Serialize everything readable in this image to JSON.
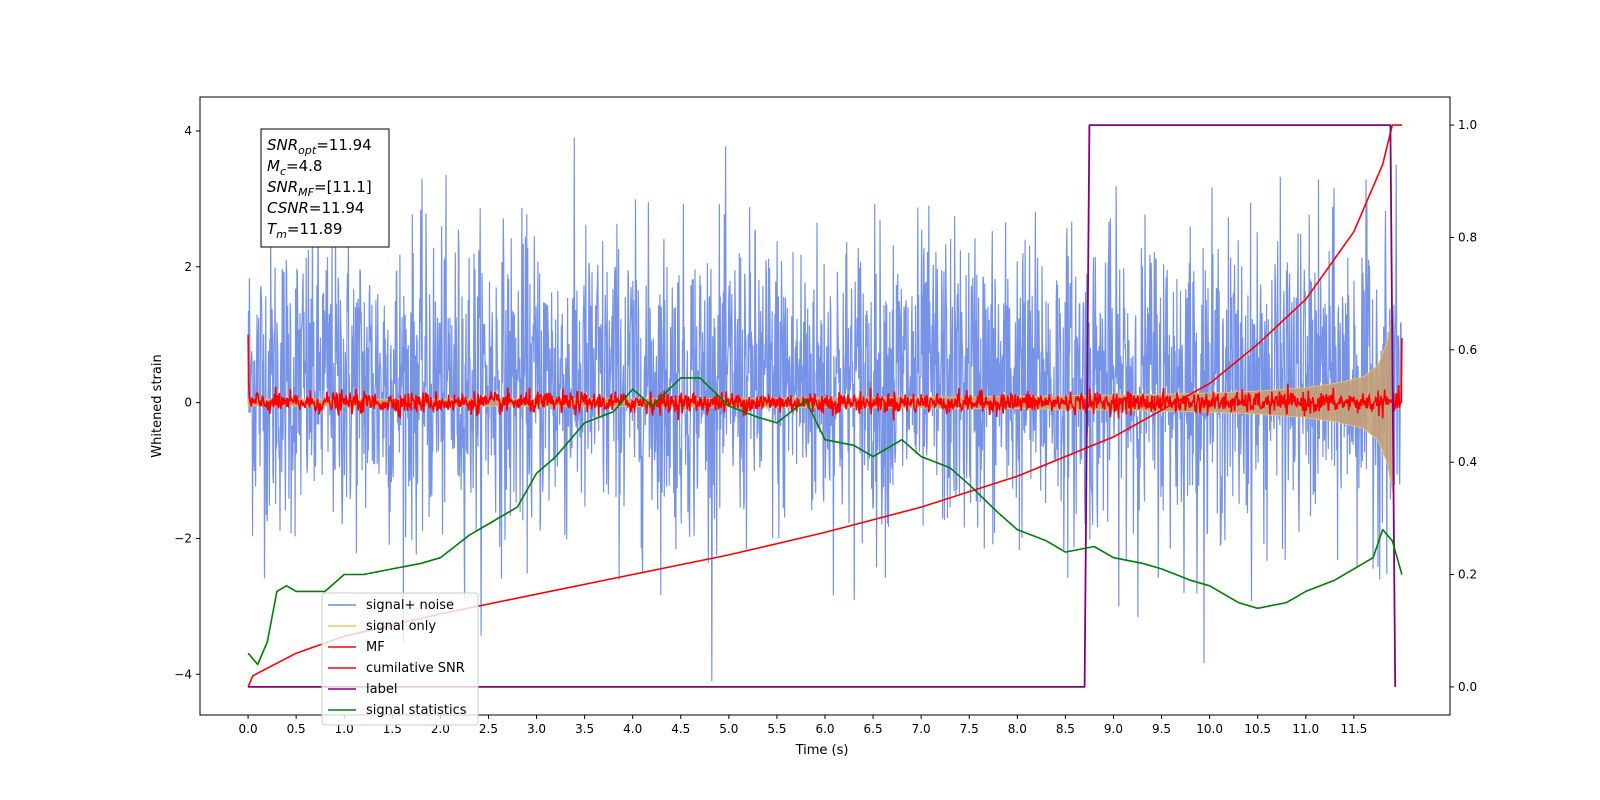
{
  "chart_data": {
    "type": "line",
    "xlabel": "Time (s)",
    "ylabel": "Whitened strain",
    "xlim": [
      -0.5,
      12.5
    ],
    "ylim": [
      -4.6,
      4.5
    ],
    "y2lim": [
      -0.05,
      1.05
    ],
    "x_ticks": [
      "0.0",
      "0.5",
      "1.0",
      "1.5",
      "2.0",
      "2.5",
      "3.0",
      "3.5",
      "4.0",
      "4.5",
      "5.0",
      "5.5",
      "6.0",
      "6.5",
      "7.0",
      "7.5",
      "8.0",
      "8.5",
      "9.0",
      "9.5",
      "10.0",
      "10.5",
      "11.0",
      "11.5"
    ],
    "y_ticks": [
      "4",
      "2",
      "0",
      "−2",
      "−4"
    ],
    "y2_ticks": [
      "1.0",
      "0.8",
      "0.6",
      "0.4",
      "0.2",
      "0.0"
    ],
    "legend_placement": "lower-left",
    "annotation": {
      "lines": [
        {
          "main": "SNR",
          "sub": "opt",
          "rest": "=11.94"
        },
        {
          "main": "M",
          "sub": "c",
          "rest": "=4.8"
        },
        {
          "main": "SNR",
          "sub": "MF",
          "rest": "=[11.1]"
        },
        {
          "main": "CSNR",
          "sub": "",
          "rest": "=11.94"
        },
        {
          "main": "T",
          "sub": "m",
          "rest": "=11.89"
        }
      ]
    },
    "series": [
      {
        "name": "signal+ noise",
        "color": "#6b8ae6",
        "axis": "left",
        "description_values": {
          "x_start": 0.0,
          "x_end": 12.0,
          "mean": 0.3,
          "spread": 2.0
        }
      },
      {
        "name": "signal only",
        "color": "#f5c26b",
        "axis": "left",
        "envelope": {
          "x": [
            0,
            2,
            4,
            6,
            8,
            9,
            10,
            10.5,
            11,
            11.3,
            11.6,
            11.75,
            11.85,
            11.9
          ],
          "amplitude": [
            0.05,
            0.05,
            0.06,
            0.07,
            0.09,
            0.11,
            0.14,
            0.17,
            0.22,
            0.28,
            0.38,
            0.55,
            0.9,
            1.3
          ]
        }
      },
      {
        "name": "MF",
        "color": "#ff0000",
        "axis": "left",
        "mean": 0.0,
        "spread": 0.13,
        "x_start": 0.0,
        "x_end": 12.0
      },
      {
        "name": "cumilative SNR",
        "color": "#ff0000",
        "axis": "right",
        "x": [
          0,
          0.05,
          0.5,
          1,
          2,
          3,
          4,
          5,
          6,
          7,
          8,
          9,
          10,
          10.5,
          11,
          11.5,
          11.8,
          11.9,
          12.0
        ],
        "values": [
          0.0,
          0.02,
          0.06,
          0.09,
          0.13,
          0.165,
          0.2,
          0.235,
          0.275,
          0.32,
          0.375,
          0.445,
          0.54,
          0.61,
          0.69,
          0.81,
          0.93,
          1.0,
          1.0
        ]
      },
      {
        "name": "label",
        "color": "#800080",
        "axis": "right",
        "x": [
          0.0,
          8.7,
          8.75,
          11.88,
          11.93
        ],
        "values": [
          0.0,
          0.0,
          1.0,
          1.0,
          0.0
        ]
      },
      {
        "name": "signal statistics",
        "color": "#008000",
        "axis": "right",
        "x": [
          0.0,
          0.1,
          0.2,
          0.3,
          0.4,
          0.5,
          0.6,
          0.8,
          1.0,
          1.2,
          1.5,
          1.8,
          2.0,
          2.3,
          2.5,
          2.8,
          3.0,
          3.2,
          3.5,
          3.8,
          4.0,
          4.2,
          4.5,
          4.7,
          5.0,
          5.3,
          5.5,
          5.8,
          6.0,
          6.3,
          6.5,
          6.8,
          7.0,
          7.3,
          7.5,
          7.8,
          8.0,
          8.3,
          8.5,
          8.8,
          9.0,
          9.3,
          9.5,
          9.8,
          10.0,
          10.3,
          10.5,
          10.8,
          11.0,
          11.3,
          11.5,
          11.7,
          11.8,
          11.9,
          12.0
        ],
        "values": [
          0.06,
          0.04,
          0.08,
          0.17,
          0.18,
          0.17,
          0.17,
          0.17,
          0.2,
          0.2,
          0.21,
          0.22,
          0.23,
          0.27,
          0.29,
          0.32,
          0.38,
          0.41,
          0.47,
          0.49,
          0.53,
          0.5,
          0.55,
          0.55,
          0.5,
          0.48,
          0.47,
          0.51,
          0.44,
          0.43,
          0.41,
          0.44,
          0.41,
          0.39,
          0.36,
          0.31,
          0.28,
          0.26,
          0.24,
          0.25,
          0.23,
          0.22,
          0.21,
          0.19,
          0.18,
          0.15,
          0.14,
          0.15,
          0.17,
          0.19,
          0.21,
          0.23,
          0.28,
          0.26,
          0.2
        ]
      }
    ]
  }
}
